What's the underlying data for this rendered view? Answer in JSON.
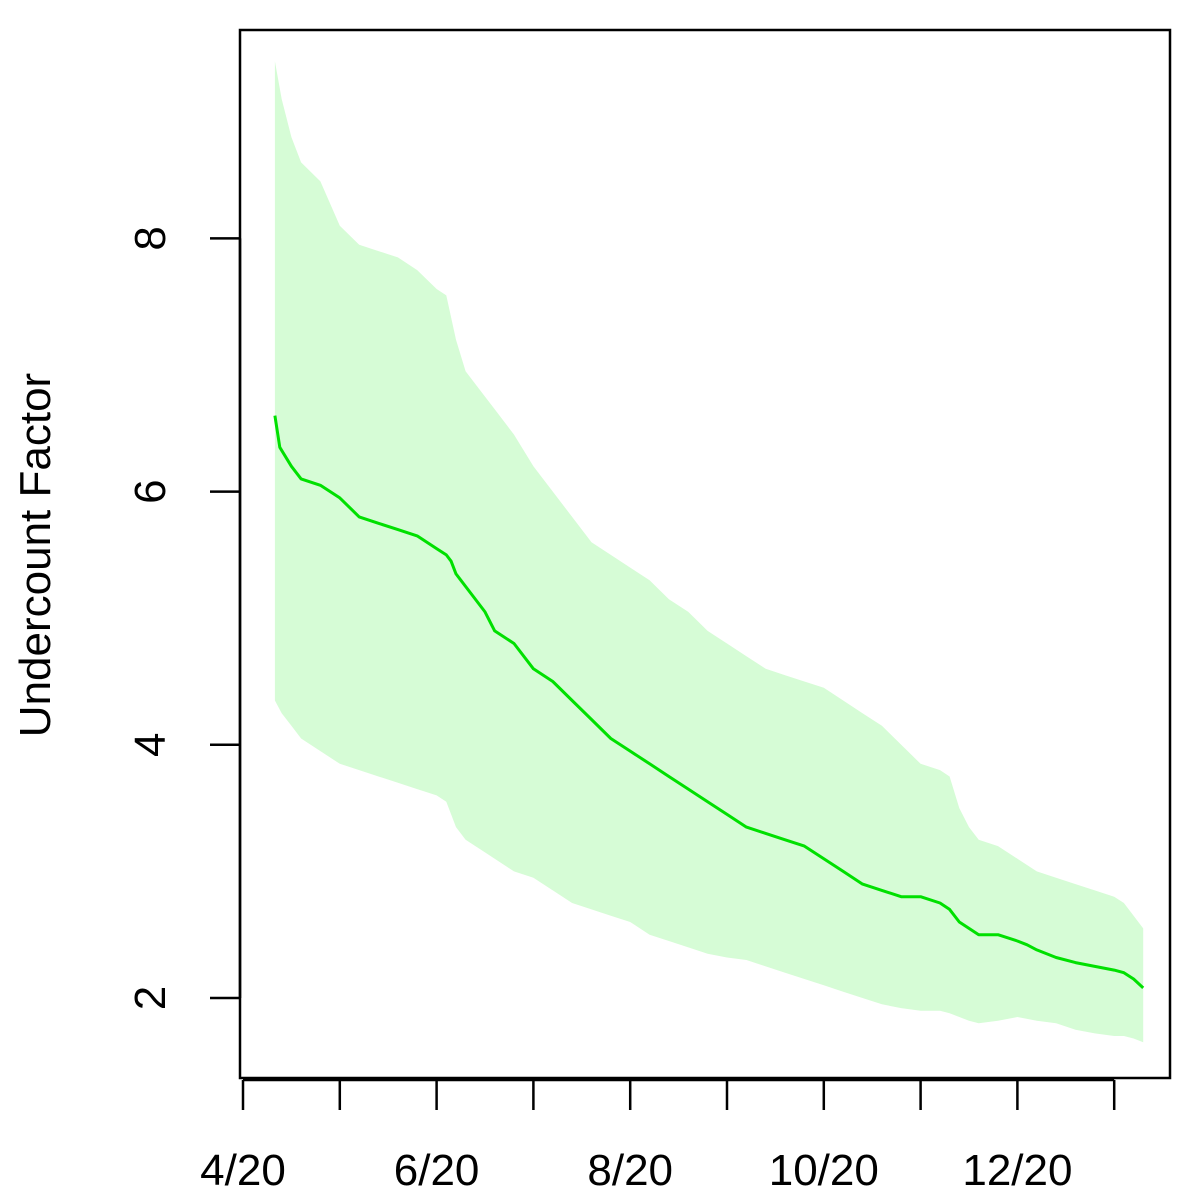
{
  "chart_data": {
    "type": "area",
    "title": "",
    "xlabel": "",
    "ylabel": "Undercount Factor",
    "x_axis": {
      "min_month": 4.0,
      "max_month": 13.35,
      "ticks": [
        4,
        5,
        6,
        7,
        8,
        9,
        10,
        11,
        12,
        13
      ],
      "tick_labels": [
        {
          "month": 4,
          "label": "4/20"
        },
        {
          "month": 6,
          "label": "6/20"
        },
        {
          "month": 8,
          "label": "8/20"
        },
        {
          "month": 10,
          "label": "10/20"
        },
        {
          "month": 12,
          "label": "12/20"
        }
      ]
    },
    "y_axis": {
      "ylim": [
        1.4,
        9.6
      ],
      "ticks": [
        2,
        4,
        6,
        8
      ],
      "tick_labels": [
        "2",
        "4",
        "6",
        "8"
      ]
    },
    "colors": {
      "line": "#00e000",
      "band": "#d6fcd6",
      "axis": "#000000"
    },
    "series": [
      {
        "kind": "central-estimate",
        "x": [
          4.33,
          4.38,
          4.5,
          4.6,
          4.8,
          5.0,
          5.2,
          5.4,
          5.6,
          5.8,
          6.0,
          6.1,
          6.15,
          6.2,
          6.25,
          6.35,
          6.5,
          6.6,
          6.8,
          7.0,
          7.2,
          7.4,
          7.6,
          7.8,
          8.0,
          8.2,
          8.4,
          8.6,
          8.8,
          9.0,
          9.2,
          9.4,
          9.6,
          9.8,
          10.0,
          10.2,
          10.4,
          10.6,
          10.8,
          11.0,
          11.2,
          11.3,
          11.4,
          11.5,
          11.6,
          11.7,
          11.8,
          12.0,
          12.1,
          12.2,
          12.4,
          12.6,
          12.8,
          13.0,
          13.1,
          13.2,
          13.3
        ],
        "y": [
          6.6,
          6.35,
          6.2,
          6.1,
          6.05,
          5.95,
          5.8,
          5.75,
          5.7,
          5.65,
          5.55,
          5.5,
          5.45,
          5.35,
          5.3,
          5.2,
          5.05,
          4.9,
          4.8,
          4.6,
          4.5,
          4.35,
          4.2,
          4.05,
          3.95,
          3.85,
          3.75,
          3.65,
          3.55,
          3.45,
          3.35,
          3.3,
          3.25,
          3.2,
          3.1,
          3.0,
          2.9,
          2.85,
          2.8,
          2.8,
          2.75,
          2.7,
          2.6,
          2.55,
          2.5,
          2.5,
          2.5,
          2.45,
          2.42,
          2.38,
          2.32,
          2.28,
          2.25,
          2.22,
          2.2,
          2.15,
          2.08
        ]
      },
      {
        "kind": "upper-bound",
        "x": [
          4.33,
          4.4,
          4.5,
          4.6,
          4.8,
          5.0,
          5.2,
          5.4,
          5.6,
          5.8,
          6.0,
          6.1,
          6.2,
          6.3,
          6.5,
          6.6,
          6.8,
          7.0,
          7.2,
          7.4,
          7.6,
          7.8,
          8.0,
          8.2,
          8.4,
          8.6,
          8.8,
          9.0,
          9.2,
          9.4,
          9.6,
          9.8,
          10.0,
          10.2,
          10.4,
          10.6,
          10.8,
          11.0,
          11.2,
          11.3,
          11.4,
          11.5,
          11.6,
          11.8,
          12.0,
          12.2,
          12.4,
          12.6,
          12.8,
          13.0,
          13.1,
          13.2,
          13.3
        ],
        "y": [
          9.4,
          9.1,
          8.8,
          8.6,
          8.45,
          8.1,
          7.95,
          7.9,
          7.85,
          7.75,
          7.6,
          7.55,
          7.2,
          6.95,
          6.75,
          6.65,
          6.45,
          6.2,
          6.0,
          5.8,
          5.6,
          5.5,
          5.4,
          5.3,
          5.15,
          5.05,
          4.9,
          4.8,
          4.7,
          4.6,
          4.55,
          4.5,
          4.45,
          4.35,
          4.25,
          4.15,
          4.0,
          3.85,
          3.8,
          3.75,
          3.5,
          3.35,
          3.25,
          3.2,
          3.1,
          3.0,
          2.95,
          2.9,
          2.85,
          2.8,
          2.75,
          2.65,
          2.55
        ]
      },
      {
        "kind": "lower-bound",
        "x": [
          4.33,
          4.4,
          4.5,
          4.6,
          4.8,
          5.0,
          5.2,
          5.4,
          5.6,
          5.8,
          6.0,
          6.1,
          6.2,
          6.3,
          6.5,
          6.6,
          6.8,
          7.0,
          7.2,
          7.4,
          7.6,
          7.8,
          8.0,
          8.2,
          8.4,
          8.6,
          8.8,
          9.0,
          9.2,
          9.4,
          9.6,
          9.8,
          10.0,
          10.2,
          10.4,
          10.6,
          10.8,
          11.0,
          11.2,
          11.3,
          11.4,
          11.5,
          11.6,
          11.8,
          12.0,
          12.2,
          12.4,
          12.6,
          12.8,
          13.0,
          13.1,
          13.2,
          13.3
        ],
        "y": [
          4.35,
          4.25,
          4.15,
          4.05,
          3.95,
          3.85,
          3.8,
          3.75,
          3.7,
          3.65,
          3.6,
          3.55,
          3.35,
          3.25,
          3.15,
          3.1,
          3.0,
          2.95,
          2.85,
          2.75,
          2.7,
          2.65,
          2.6,
          2.5,
          2.45,
          2.4,
          2.35,
          2.32,
          2.3,
          2.25,
          2.2,
          2.15,
          2.1,
          2.05,
          2.0,
          1.95,
          1.92,
          1.9,
          1.9,
          1.88,
          1.85,
          1.82,
          1.8,
          1.82,
          1.85,
          1.82,
          1.8,
          1.75,
          1.72,
          1.7,
          1.7,
          1.68,
          1.65
        ]
      }
    ]
  }
}
